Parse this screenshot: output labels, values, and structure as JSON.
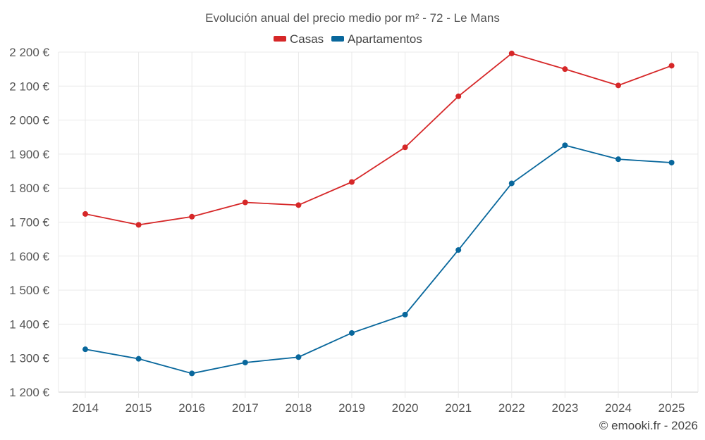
{
  "chart_data": {
    "type": "line",
    "title": "Evolución anual del precio medio por m² - 72 - Le Mans",
    "categories": [
      "2014",
      "2015",
      "2016",
      "2017",
      "2018",
      "2019",
      "2020",
      "2021",
      "2022",
      "2023",
      "2024",
      "2025"
    ],
    "series": [
      {
        "name": "Casas",
        "color": "#d62728",
        "values": [
          1724,
          1692,
          1716,
          1758,
          1750,
          1818,
          1920,
          2070,
          2196,
          2150,
          2102,
          2160
        ]
      },
      {
        "name": "Apartamentos",
        "color": "#08679c",
        "values": [
          1326,
          1298,
          1255,
          1287,
          1303,
          1374,
          1428,
          1618,
          1814,
          1926,
          1885,
          1875
        ]
      }
    ],
    "ylim": [
      1200,
      2200
    ],
    "yticks": [
      1200,
      1300,
      1400,
      1500,
      1600,
      1700,
      1800,
      1900,
      2000,
      2100,
      2200
    ],
    "ytick_labels": [
      "1 200 €",
      "1 300 €",
      "1 400 €",
      "1 500 €",
      "1 600 €",
      "1 700 €",
      "1 800 €",
      "1 900 €",
      "2 000 €",
      "2 100 €",
      "2 200 €"
    ],
    "xlabel": "",
    "ylabel": "",
    "grid": true,
    "legend": "top-center"
  },
  "credit": "© emooki.fr - 2026"
}
